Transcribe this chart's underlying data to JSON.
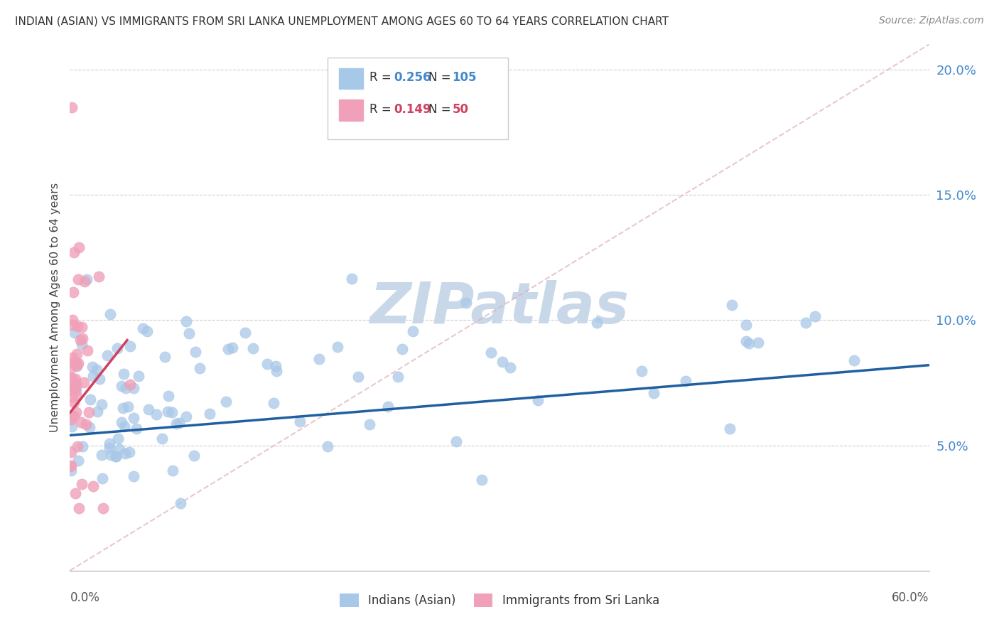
{
  "title": "INDIAN (ASIAN) VS IMMIGRANTS FROM SRI LANKA UNEMPLOYMENT AMONG AGES 60 TO 64 YEARS CORRELATION CHART",
  "source": "Source: ZipAtlas.com",
  "ylabel": "Unemployment Among Ages 60 to 64 years",
  "legend1_R": "0.256",
  "legend1_N": "105",
  "legend2_R": "0.149",
  "legend2_N": "50",
  "blue_color": "#a8c8e8",
  "pink_color": "#f0a0b8",
  "blue_line_color": "#2060a0",
  "pink_line_color": "#d04060",
  "diag_line_color": "#e0b0b8",
  "watermark_color": "#c8d8e8",
  "xlim": [
    0,
    0.6
  ],
  "ylim": [
    0,
    0.21
  ],
  "ytick_vals": [
    0.05,
    0.1,
    0.15,
    0.2
  ],
  "ytick_labels": [
    "5.0%",
    "10.0%",
    "15.0%",
    "20.0%"
  ],
  "blue_trend_x": [
    0.0,
    0.6
  ],
  "blue_trend_y": [
    0.054,
    0.082
  ],
  "pink_trend_x": [
    0.0,
    0.04
  ],
  "pink_trend_y": [
    0.063,
    0.092
  ]
}
